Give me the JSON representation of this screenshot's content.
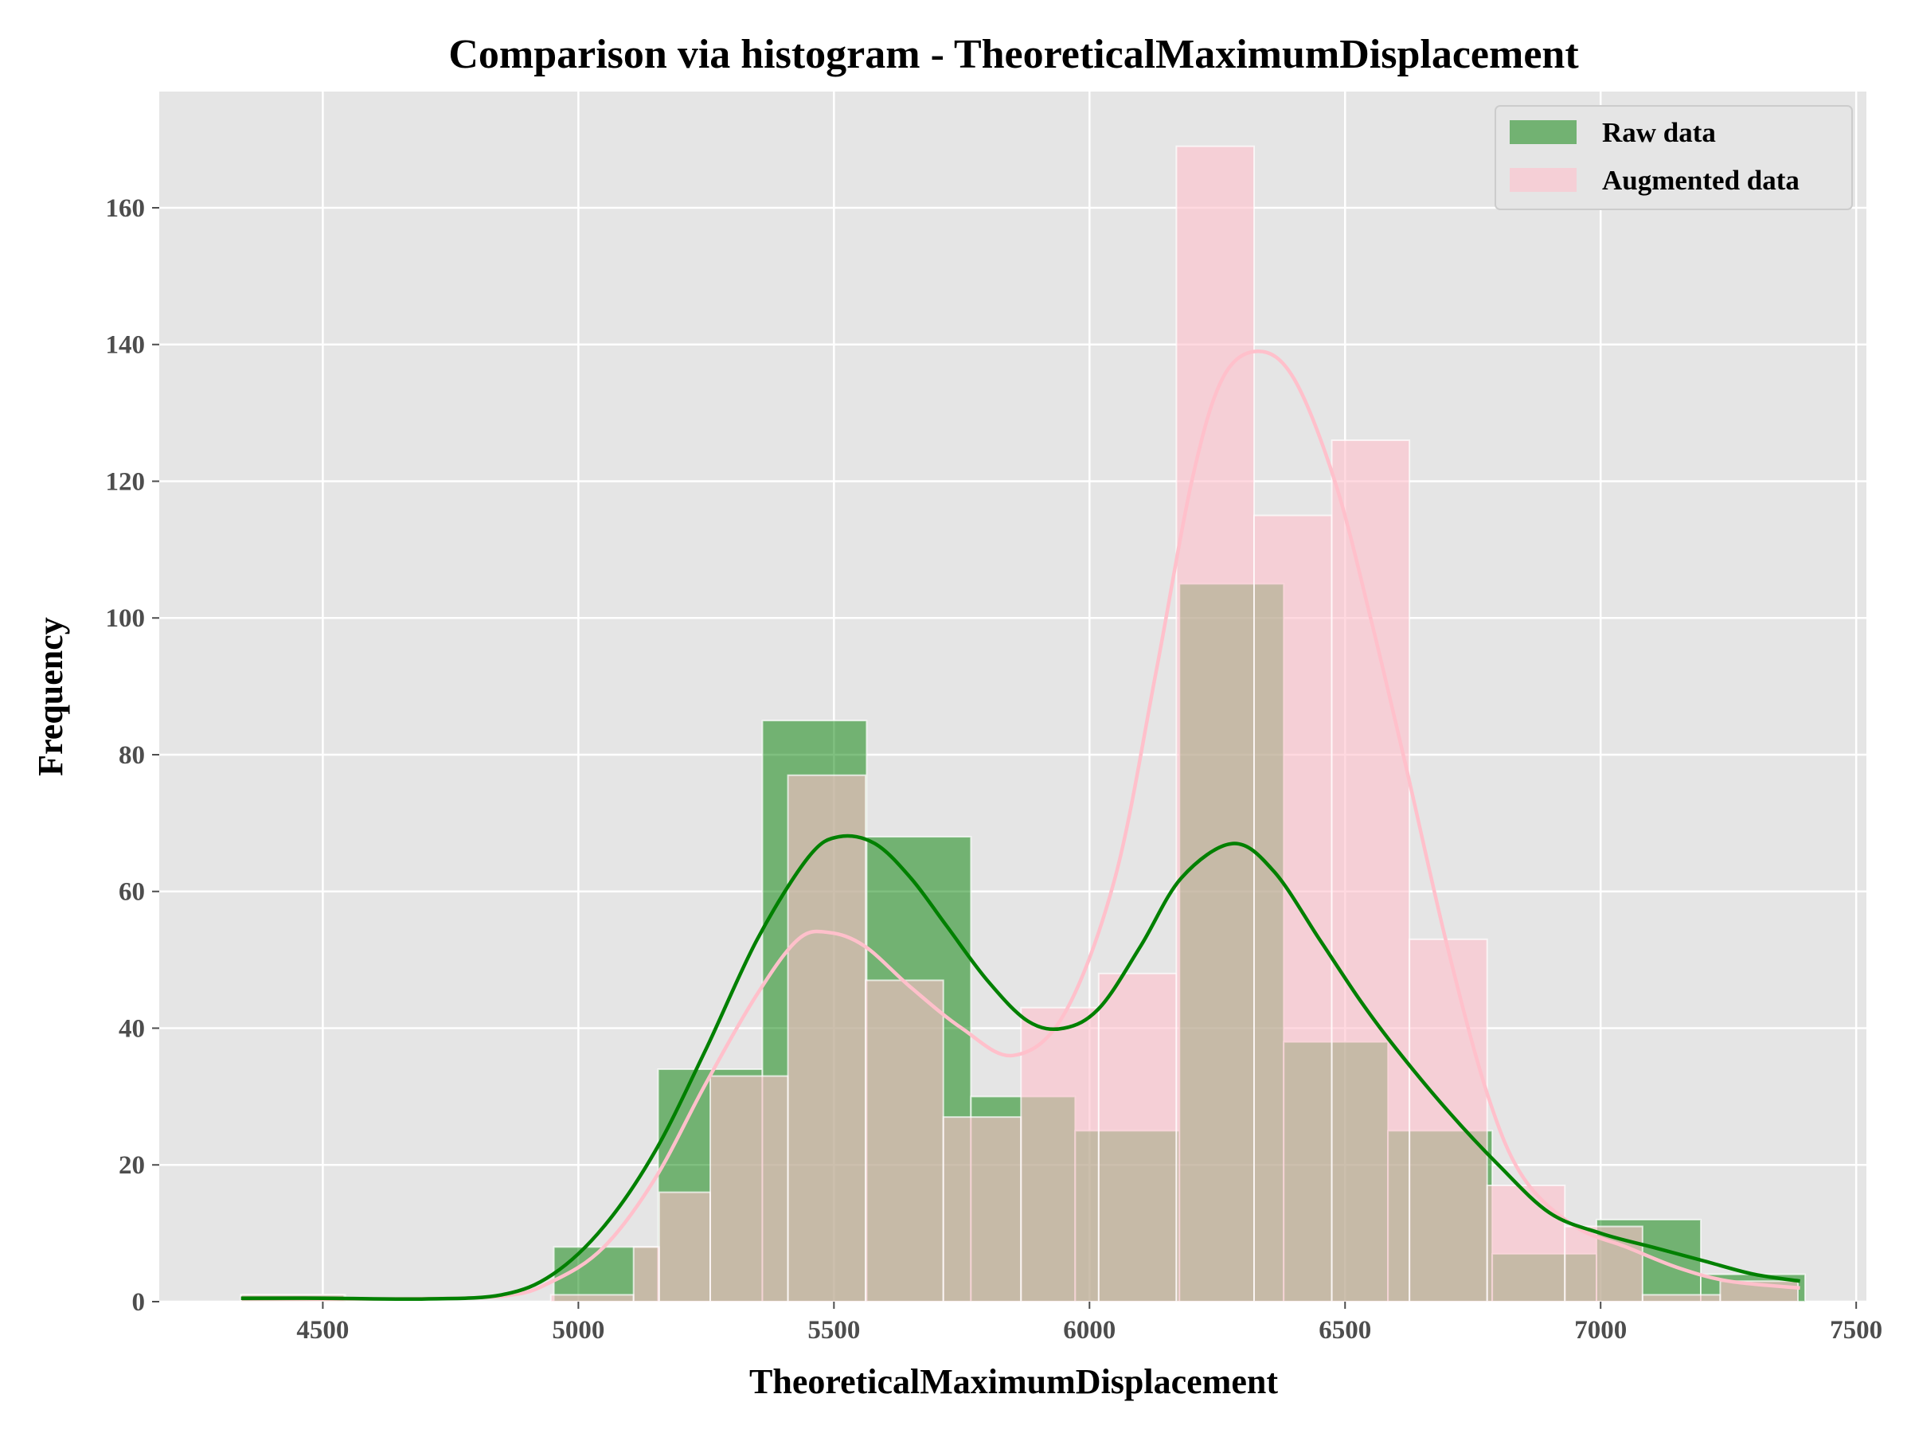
{
  "chart_data": {
    "type": "bar",
    "title": "Comparison via histogram - TheoreticalMaximumDisplacement",
    "xlabel": "TheoreticalMaximumDisplacement",
    "ylabel": "Frequency",
    "xlim": [
      4180,
      7520
    ],
    "ylim": [
      0,
      177
    ],
    "xticks": [
      4500,
      5000,
      5500,
      6000,
      6500,
      7000,
      7500
    ],
    "yticks": [
      0,
      20,
      40,
      60,
      80,
      100,
      120,
      140,
      160
    ],
    "grid": true,
    "background": "#e5e5e5",
    "legend": {
      "placement": "top-right",
      "entries": [
        {
          "label": "Raw data",
          "color": "#008000"
        },
        {
          "label": "Augmented data",
          "color": "#ffc0cb"
        }
      ]
    },
    "series": [
      {
        "name": "Raw data",
        "color": "#008000",
        "bins": [
          {
            "x0": 4340,
            "x1": 4544,
            "count": 1
          },
          {
            "x0": 4544,
            "x1": 4748,
            "count": 0
          },
          {
            "x0": 4748,
            "x1": 4952,
            "count": 0
          },
          {
            "x0": 4952,
            "x1": 5156,
            "count": 8
          },
          {
            "x0": 5156,
            "x1": 5360,
            "count": 34
          },
          {
            "x0": 5360,
            "x1": 5564,
            "count": 85
          },
          {
            "x0": 5564,
            "x1": 5768,
            "count": 68
          },
          {
            "x0": 5768,
            "x1": 5972,
            "count": 30
          },
          {
            "x0": 5972,
            "x1": 6176,
            "count": 25
          },
          {
            "x0": 6176,
            "x1": 6380,
            "count": 105
          },
          {
            "x0": 6380,
            "x1": 6584,
            "count": 38
          },
          {
            "x0": 6584,
            "x1": 6788,
            "count": 25
          },
          {
            "x0": 6788,
            "x1": 6992,
            "count": 7
          },
          {
            "x0": 6992,
            "x1": 7196,
            "count": 12
          },
          {
            "x0": 7196,
            "x1": 7400,
            "count": 4
          }
        ],
        "kde": {
          "x": [
            4340,
            4500,
            4700,
            4850,
            4950,
            5050,
            5150,
            5250,
            5350,
            5450,
            5510,
            5580,
            5650,
            5720,
            5800,
            5880,
            5950,
            6020,
            6100,
            6180,
            6280,
            6360,
            6450,
            6530,
            6600,
            6700,
            6800,
            6900,
            7000,
            7100,
            7200,
            7300,
            7390
          ],
          "y": [
            0.5,
            0.5,
            0.4,
            1,
            4,
            11,
            22,
            37,
            53,
            65,
            68,
            67,
            62,
            55,
            47,
            41,
            40,
            43,
            52,
            62,
            67,
            63,
            53,
            44,
            37,
            28,
            20,
            13,
            10,
            8,
            6,
            4,
            3
          ]
        }
      },
      {
        "name": "Augmented data",
        "color": "#ffc0cb",
        "bins": [
          {
            "x0": 4340,
            "x1": 4542,
            "count": 1
          },
          {
            "x0": 4542,
            "x1": 4744,
            "count": 0
          },
          {
            "x0": 4744,
            "x1": 4946,
            "count": 0
          },
          {
            "x0": 4946,
            "x1": 5108,
            "count": 1
          },
          {
            "x0": 5108,
            "x1": 5158,
            "count": 8
          },
          {
            "x0": 5158,
            "x1": 5258,
            "count": 16
          },
          {
            "x0": 5258,
            "x1": 5410,
            "count": 33
          },
          {
            "x0": 5410,
            "x1": 5562,
            "count": 77
          },
          {
            "x0": 5562,
            "x1": 5714,
            "count": 47
          },
          {
            "x0": 5714,
            "x1": 5866,
            "count": 27
          },
          {
            "x0": 5866,
            "x1": 6018,
            "count": 43
          },
          {
            "x0": 6018,
            "x1": 6170,
            "count": 48
          },
          {
            "x0": 6170,
            "x1": 6322,
            "count": 169
          },
          {
            "x0": 6322,
            "x1": 6474,
            "count": 115
          },
          {
            "x0": 6474,
            "x1": 6626,
            "count": 126
          },
          {
            "x0": 6626,
            "x1": 6778,
            "count": 53
          },
          {
            "x0": 6778,
            "x1": 6930,
            "count": 17
          },
          {
            "x0": 6930,
            "x1": 7082,
            "count": 11
          },
          {
            "x0": 7082,
            "x1": 7234,
            "count": 1
          },
          {
            "x0": 7234,
            "x1": 7386,
            "count": 3
          }
        ],
        "kde": {
          "x": [
            4340,
            4600,
            4850,
            4950,
            5050,
            5150,
            5250,
            5350,
            5430,
            5490,
            5560,
            5650,
            5750,
            5850,
            5950,
            6050,
            6130,
            6200,
            6260,
            6330,
            6400,
            6480,
            6550,
            6620,
            6700,
            6780,
            6850,
            6950,
            7050,
            7150,
            7250,
            7390
          ],
          "y": [
            0.5,
            0.4,
            0.8,
            3,
            8,
            18,
            32,
            45,
            53,
            54,
            52,
            46,
            40,
            36,
            42,
            62,
            92,
            120,
            135,
            139,
            135,
            120,
            100,
            78,
            52,
            30,
            18,
            11,
            8,
            5,
            3,
            2
          ]
        }
      }
    ]
  }
}
